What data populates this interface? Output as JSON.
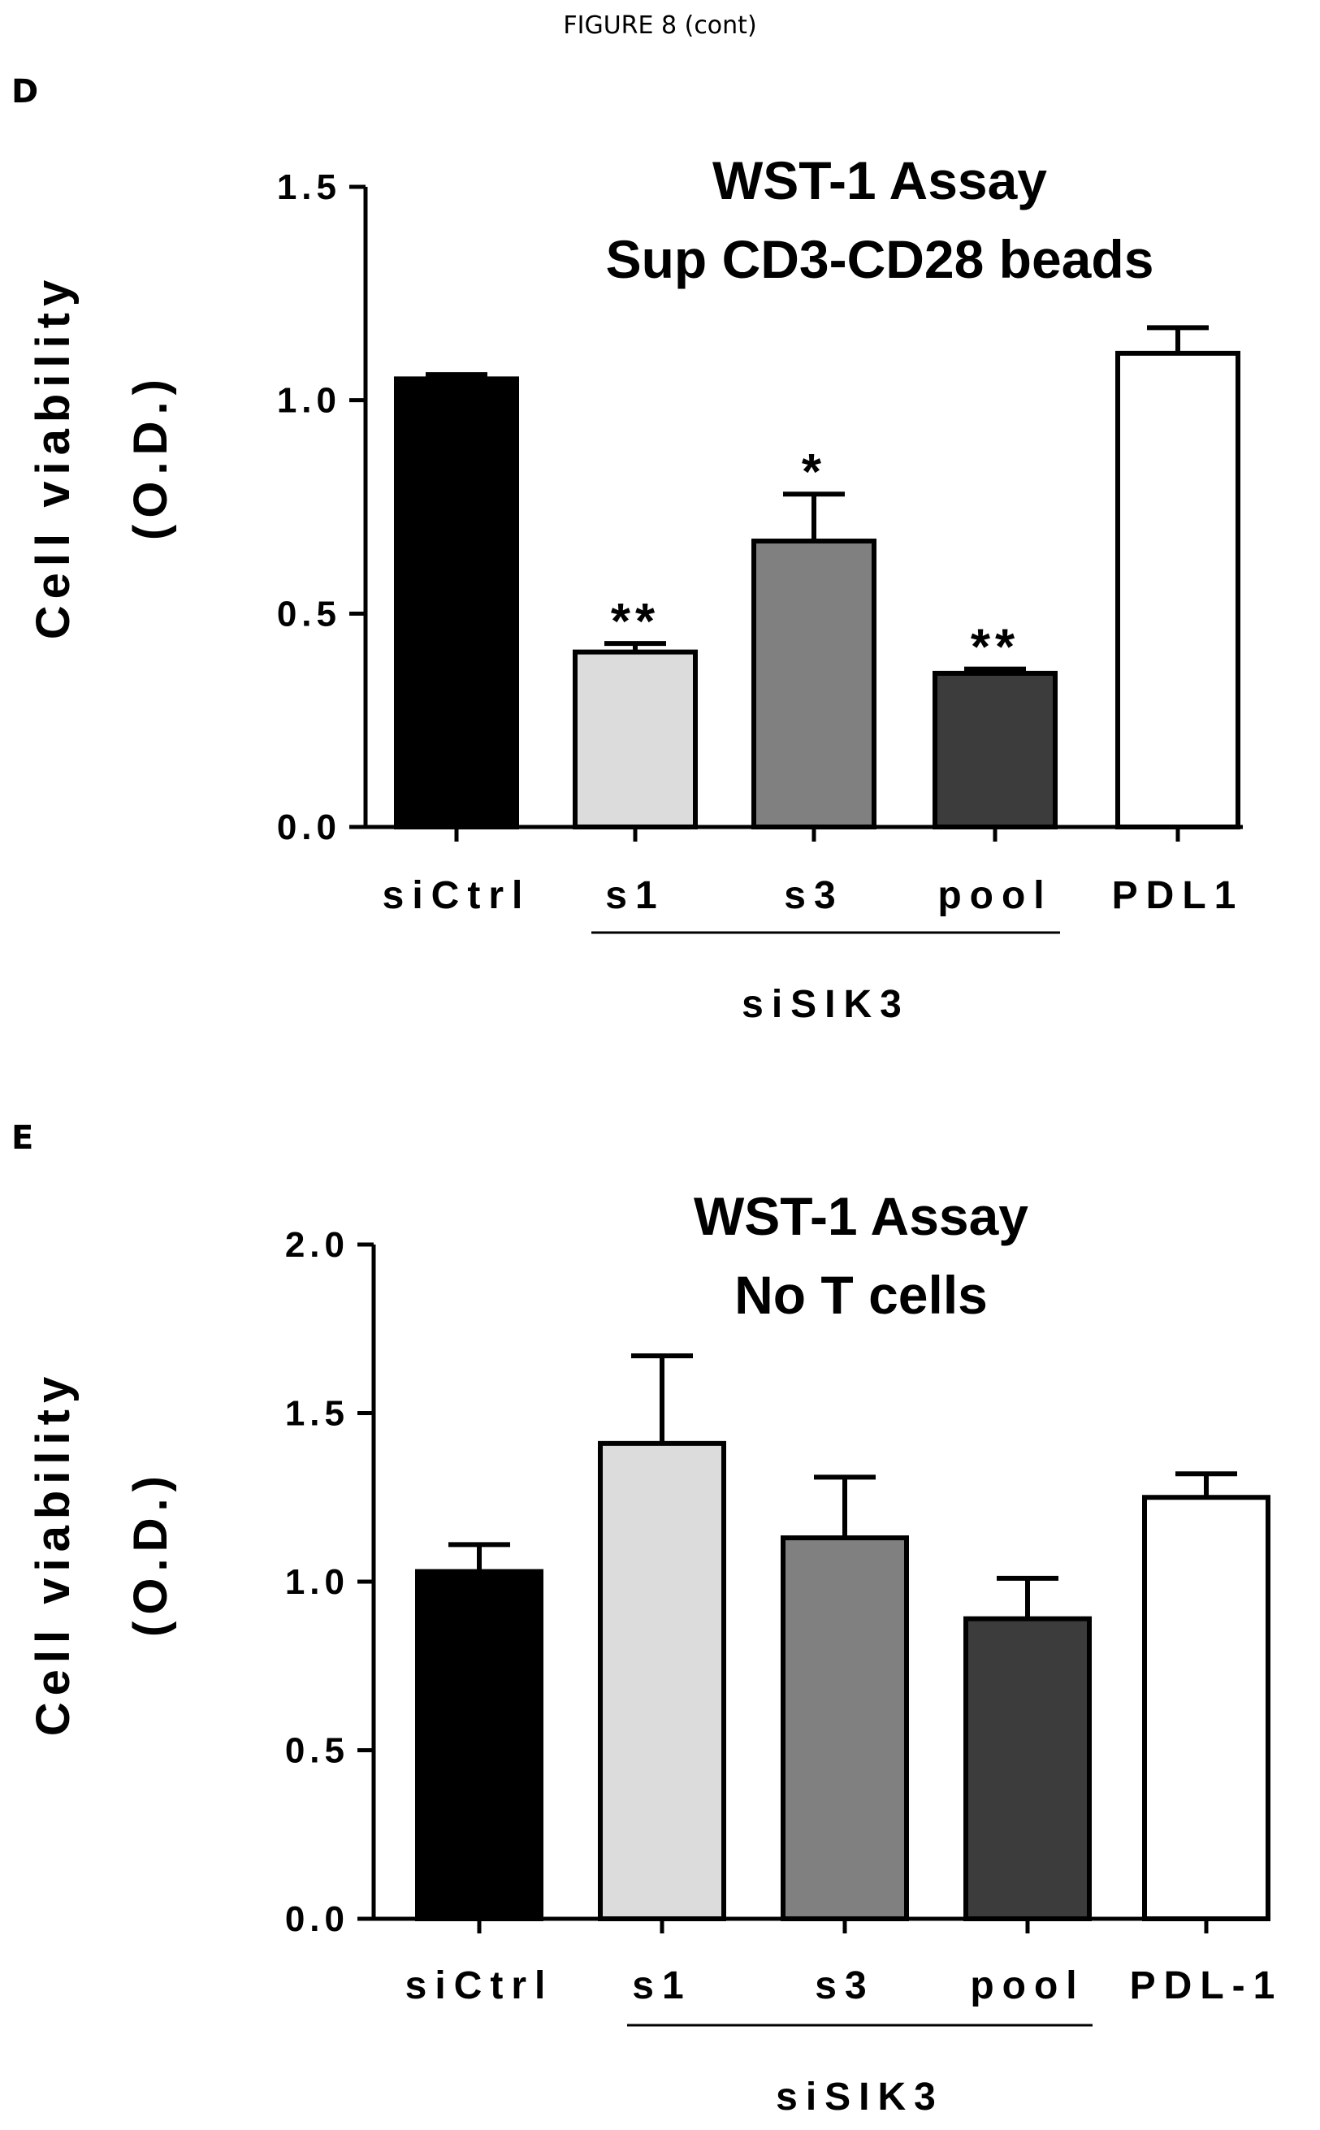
{
  "header": {
    "figure_label": "FIGURE 8 (cont)"
  },
  "colors": {
    "siCtrl": "#000000",
    "s1": "#dcdcdc",
    "s3": "#808080",
    "pool": "#3c3c3c",
    "PDL": "#ffffff"
  },
  "chart_data": [
    {
      "panel": "D",
      "type": "bar",
      "title_lines": [
        "WST-1 Assay",
        "Sup CD3-CD28 beads"
      ],
      "ylabel_lines": [
        "Cell viability",
        "(O.D.)"
      ],
      "xlabel": "",
      "group_label": "siSIK3",
      "ylim": [
        0,
        1.5
      ],
      "yticks": [
        "0.0",
        "0.5",
        "1.0",
        "1.5"
      ],
      "categories": [
        "siCtrl",
        "s1",
        "s3",
        "pool",
        "PDL1"
      ],
      "values": [
        1.05,
        0.41,
        0.67,
        0.36,
        1.11
      ],
      "errors": [
        0.01,
        0.02,
        0.11,
        0.01,
        0.06
      ],
      "significance": [
        "",
        "**",
        "*",
        "**",
        ""
      ],
      "grid": false,
      "legend": "none"
    },
    {
      "panel": "E",
      "type": "bar",
      "title_lines": [
        "WST-1 Assay",
        "No T cells"
      ],
      "ylabel_lines": [
        "Cell viability",
        "(O.D.)"
      ],
      "xlabel": "",
      "group_label": "siSIK3",
      "ylim": [
        0,
        2.0
      ],
      "yticks": [
        "0.0",
        "0.5",
        "1.0",
        "1.5",
        "2.0"
      ],
      "categories": [
        "siCtrl",
        "s1",
        "s3",
        "pool",
        "PDL-1"
      ],
      "values": [
        1.03,
        1.41,
        1.13,
        0.89,
        1.25
      ],
      "errors": [
        0.08,
        0.26,
        0.18,
        0.12,
        0.07
      ],
      "significance": [
        "",
        "",
        "",
        "",
        ""
      ],
      "grid": false,
      "legend": "none"
    }
  ]
}
